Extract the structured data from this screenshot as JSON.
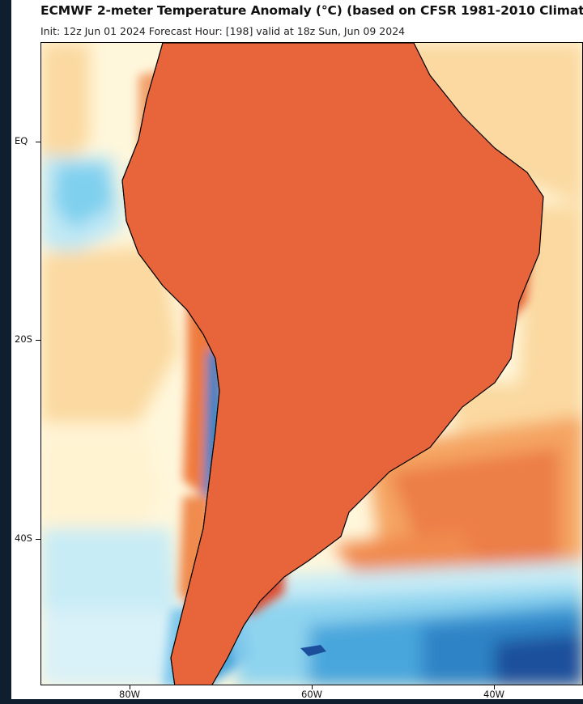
{
  "title": "ECMWF 2-meter Temperature Anomaly (°C) (based on CFSR 1981-2010 Climat",
  "subtitle": "Init: 12z Jun 01 2024   Forecast Hour: [198]   valid at 18z Sun, Jun 09 2024",
  "map": {
    "region": "South America",
    "variable": "2-meter temperature anomaly",
    "latitude_labels": [
      "EQ",
      "20S",
      "40S"
    ],
    "longitude_labels": [
      "80W",
      "60W",
      "40W"
    ]
  },
  "colors": {
    "deep_warm": "#b23a6a",
    "hot": "#c9302c",
    "warm": "#e0642e",
    "mild_warm": "#f3a15c",
    "slight_warm": "#fbd9a0",
    "neutral": "#fff7dc",
    "slight_cool": "#c8ecf6",
    "cool": "#6fc6e8",
    "cold": "#2e83c6",
    "very_cold": "#1b4f9c"
  }
}
